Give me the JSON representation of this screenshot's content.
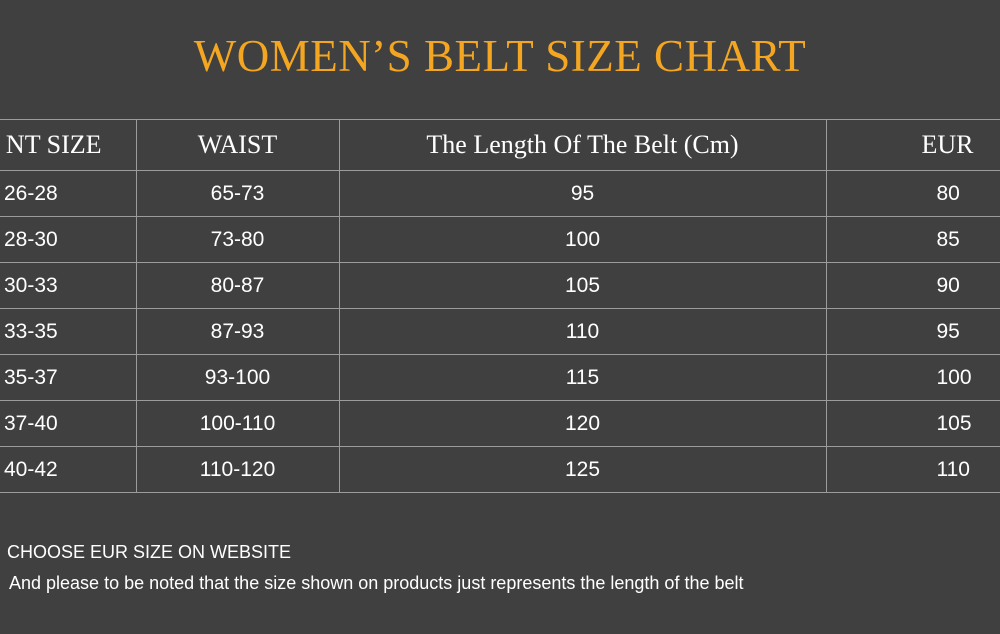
{
  "title": "WOMEN’S BELT SIZE CHART",
  "colors": {
    "background": "#404040",
    "title": "#f4a621",
    "grid": "#9c9c9c",
    "text": "#ffffff"
  },
  "table": {
    "headers": [
      "NT SIZE",
      "WAIST",
      "The Length Of The Belt (Cm)",
      "EUR"
    ],
    "rows": [
      [
        "26-28",
        "65-73",
        "95",
        "80"
      ],
      [
        "28-30",
        "73-80",
        "100",
        "85"
      ],
      [
        "30-33",
        "80-87",
        "105",
        "90"
      ],
      [
        "33-35",
        "87-93",
        "110",
        "95"
      ],
      [
        "35-37",
        "93-100",
        "115",
        "100"
      ],
      [
        "37-40",
        "100-110",
        "120",
        "105"
      ],
      [
        "40-42",
        "110-120",
        "125",
        "110"
      ]
    ]
  },
  "notes": [
    "CHOOSE EUR SIZE ON WEBSITE",
    "And please to be noted that the size shown on products just represents the length of the belt"
  ]
}
